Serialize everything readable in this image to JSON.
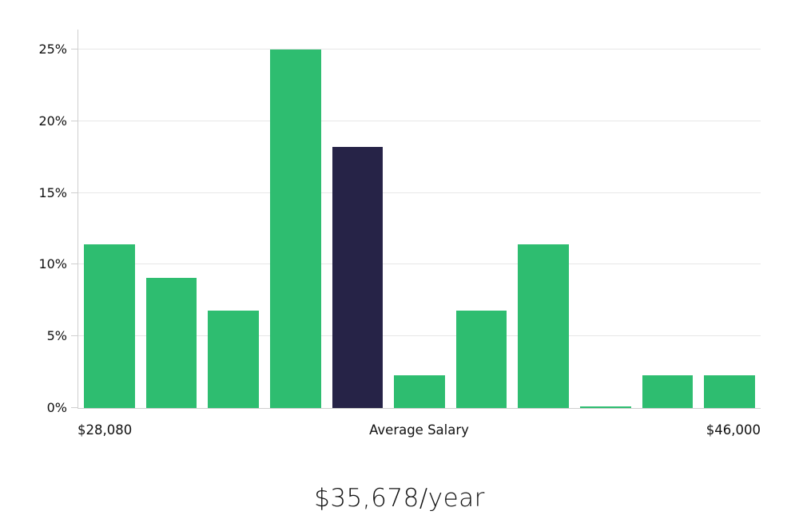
{
  "chart_data": {
    "type": "bar",
    "title": "$35,678/year",
    "y_ticks": [
      "0%",
      "5%",
      "10%",
      "15%",
      "20%",
      "25%"
    ],
    "y_tick_values": [
      0,
      5,
      10,
      15,
      20,
      25
    ],
    "ylim": [
      0,
      26.4
    ],
    "values": [
      11.4,
      9.1,
      6.8,
      25.0,
      18.2,
      2.3,
      6.8,
      11.4,
      0.1,
      2.3,
      2.3
    ],
    "highlighted_bar_index": 4,
    "x_axis_labels": {
      "left": "$28,080",
      "center": "Average Salary",
      "right": "$46,000"
    },
    "colors": {
      "bar": "#2ebd70",
      "highlight": "#262347",
      "gridline": "#e7e7e7",
      "axis": "#cfcfcf",
      "text": "#111111"
    },
    "grid": true,
    "legend": false
  }
}
